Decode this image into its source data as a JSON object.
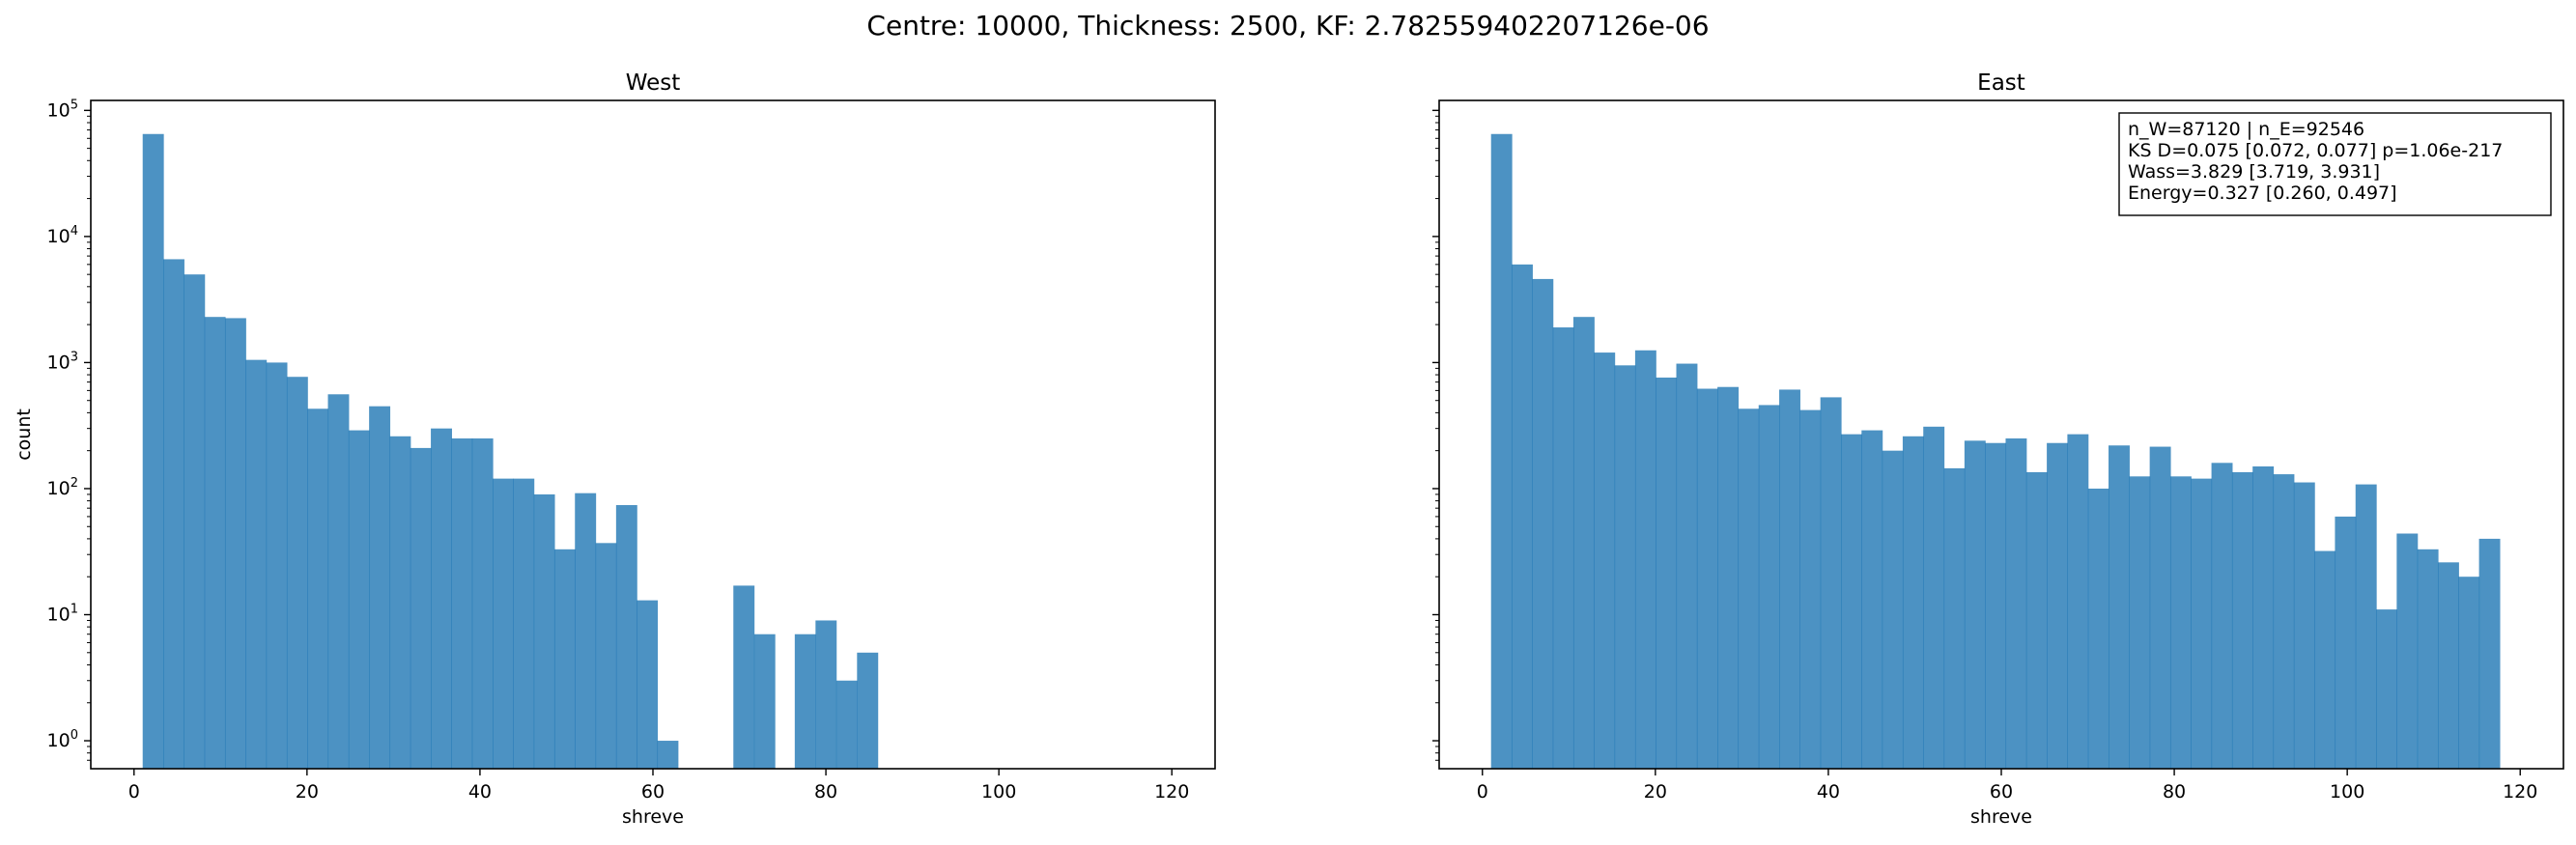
{
  "figure": {
    "title": "Centre: 10000, Thickness: 2500, KF: 2.782559402207126e-06"
  },
  "chart_data": [
    {
      "type": "bar",
      "title": "West",
      "xlabel": "shreve",
      "ylabel": "count",
      "yscale": "log",
      "xlim": [
        -5,
        125
      ],
      "ylim": [
        0.6,
        120000
      ],
      "xticks": [
        0,
        20,
        40,
        60,
        80,
        100,
        120
      ],
      "yticks": [
        {
          "value": 1,
          "base": "10",
          "exp": "0"
        },
        {
          "value": 10,
          "base": "10",
          "exp": "1"
        },
        {
          "value": 100,
          "base": "10",
          "exp": "2"
        },
        {
          "value": 1000,
          "base": "10",
          "exp": "3"
        },
        {
          "value": 10000,
          "base": "10",
          "exp": "4"
        },
        {
          "value": 100000,
          "base": "10",
          "exp": "5"
        }
      ],
      "bin_start": 1,
      "bin_width": 2.38,
      "color": "#1f77b4",
      "values": [
        65000,
        6600,
        5000,
        2300,
        2250,
        1050,
        1000,
        770,
        430,
        560,
        290,
        450,
        260,
        210,
        300,
        250,
        250,
        120,
        120,
        90,
        33,
        92,
        37,
        74,
        13,
        1,
        0,
        0,
        0,
        0,
        0,
        0,
        0,
        0,
        0,
        0,
        0,
        0,
        0,
        0,
        0,
        0,
        0,
        0,
        0,
        0,
        0,
        0,
        0,
        0
      ],
      "sparse_bins": [
        {
          "x": 69.3,
          "value": 17
        },
        {
          "x": 71.7,
          "value": 7
        },
        {
          "x": 76.4,
          "value": 7
        },
        {
          "x": 78.8,
          "value": 9
        },
        {
          "x": 81.2,
          "value": 3
        },
        {
          "x": 83.6,
          "value": 5
        }
      ]
    },
    {
      "type": "bar",
      "title": "East",
      "xlabel": "shreve",
      "ylabel": "",
      "yscale": "log",
      "xlim": [
        -5,
        125
      ],
      "ylim": [
        0.6,
        120000
      ],
      "xticks": [
        0,
        20,
        40,
        60,
        80,
        100,
        120
      ],
      "yticks": [],
      "bin_start": 1,
      "bin_width": 2.38,
      "color": "#1f77b4",
      "values": [
        65000,
        6000,
        4600,
        1900,
        2300,
        1200,
        950,
        1250,
        760,
        980,
        620,
        640,
        430,
        460,
        610,
        420,
        530,
        270,
        290,
        200,
        260,
        310,
        145,
        240,
        230,
        250,
        135,
        230,
        270,
        100,
        220,
        125,
        215,
        125,
        120,
        160,
        135,
        150,
        130,
        112,
        32,
        60,
        108,
        11,
        44,
        33,
        26,
        20,
        40
      ],
      "annotation": [
        "n_W=87120 | n_E=92546",
        "KS D=0.075 [0.072, 0.077]  p=1.06e-217",
        "Wass=3.829 [3.719, 3.931]",
        "Energy=0.327 [0.260, 0.497]"
      ]
    }
  ]
}
